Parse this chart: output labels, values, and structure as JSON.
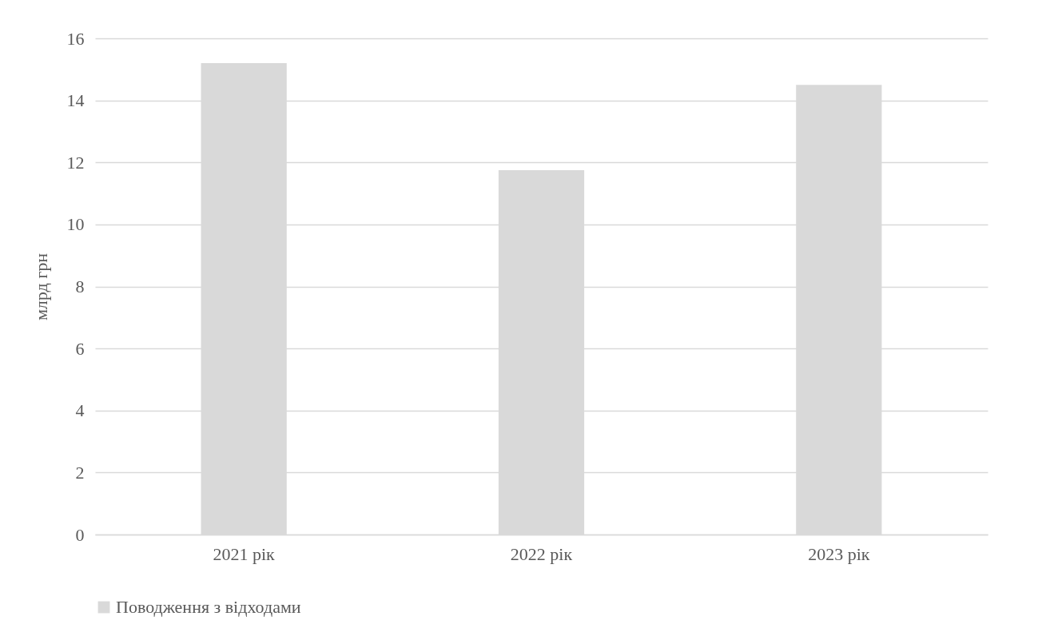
{
  "chart_data": {
    "type": "bar",
    "ylabel": "млрд грн",
    "categories": [
      "2021 рік",
      "2022 рік",
      "2023 рік"
    ],
    "series": [
      {
        "name": "Поводження з відходами",
        "color": "#d9d9d9",
        "values": [
          15.2,
          11.75,
          14.5
        ]
      }
    ],
    "ylim": [
      0,
      16
    ],
    "yticks": [
      0,
      2,
      4,
      6,
      8,
      10,
      12,
      14,
      16
    ],
    "grid": "y",
    "legend": "bottom"
  }
}
